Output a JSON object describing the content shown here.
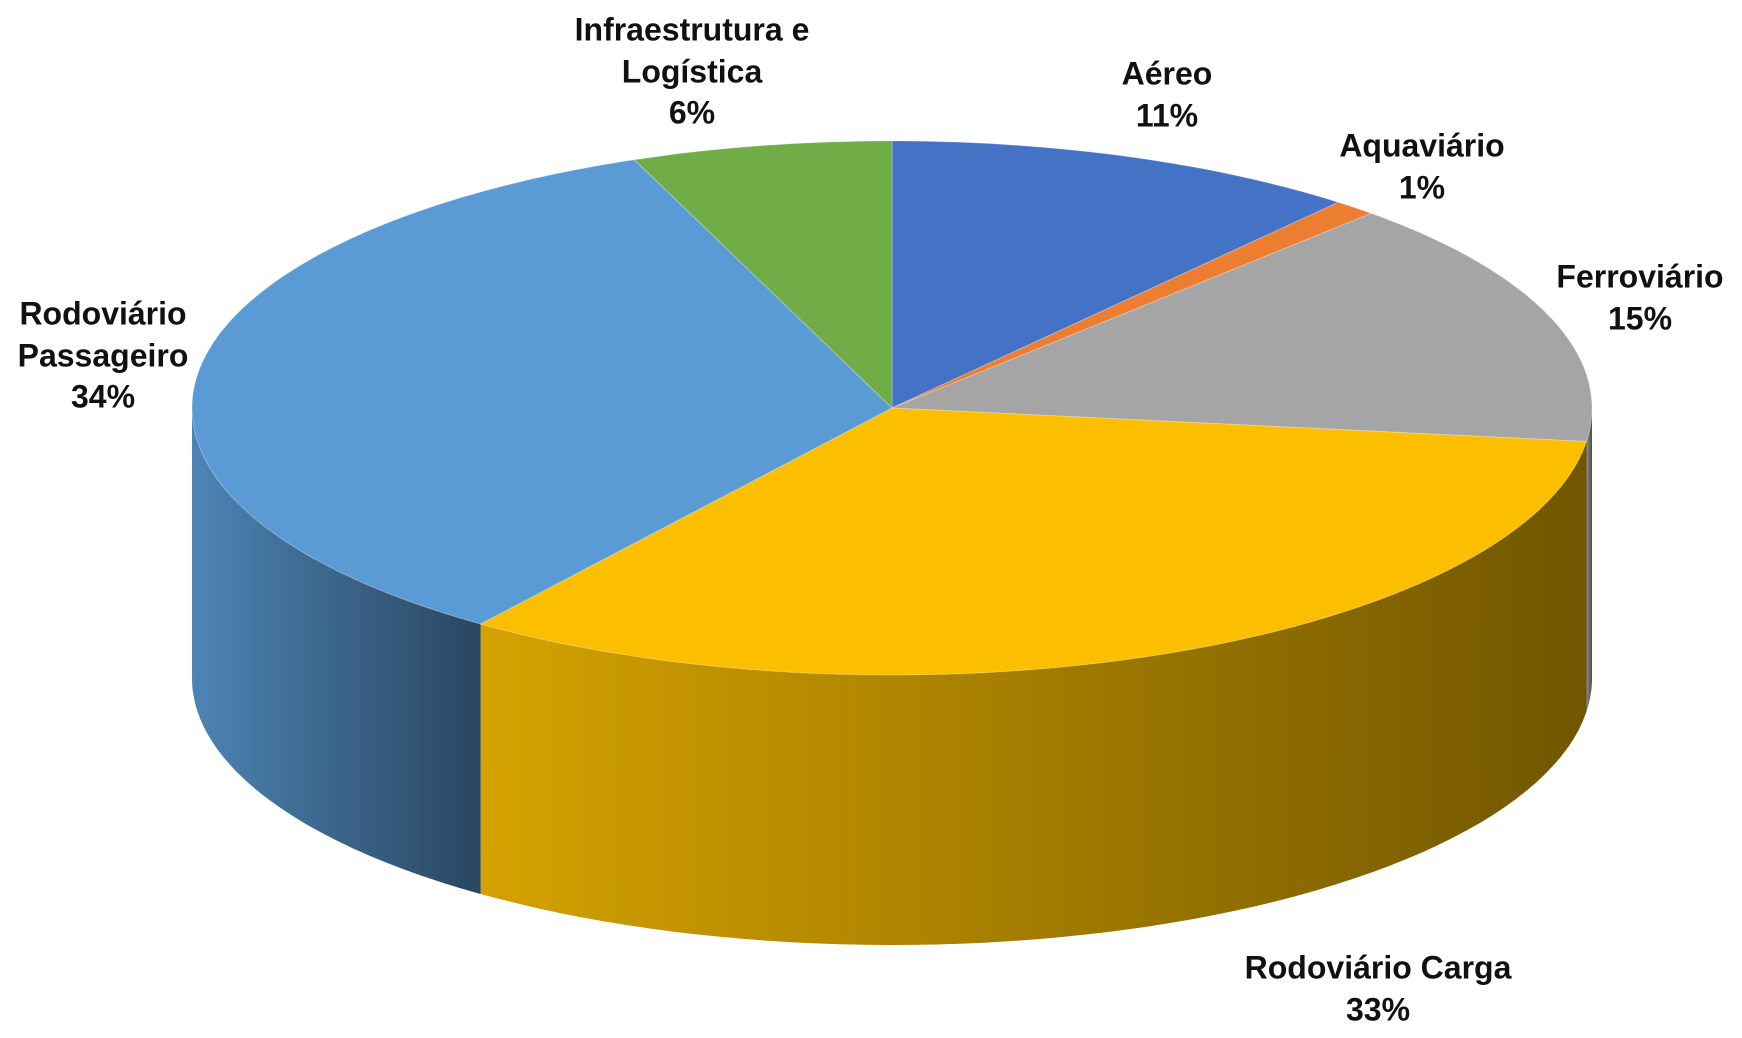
{
  "chart_data": {
    "type": "pie",
    "categories": [
      "Aéreo",
      "Aquaviário",
      "Ferroviário",
      "Rodoviário Carga",
      "Rodoviário Passageiro",
      "Infraestrutura e Logística"
    ],
    "values": [
      11,
      1,
      15,
      33,
      34,
      6
    ],
    "value_labels": [
      "11%",
      "1%",
      "15%",
      "33%",
      "34%",
      "6%"
    ],
    "colors": [
      "#4472c4",
      "#ed7d31",
      "#a5a5a5",
      "#fbbf00",
      "#5b9bd5",
      "#70ad47"
    ]
  }
}
